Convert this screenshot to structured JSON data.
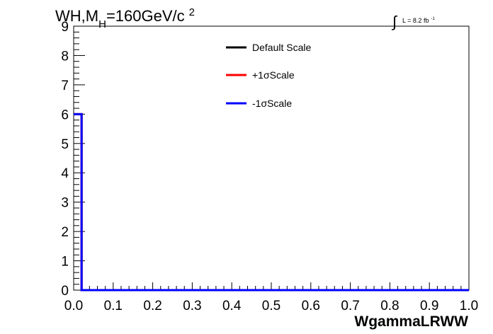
{
  "title": {
    "main": "WH,M",
    "sub": "H",
    "rest": "=160GeV/c",
    "sup": "2"
  },
  "lumi": {
    "integral": "∫",
    "text": "L = 8.2 fb",
    "sup": "-1"
  },
  "chart_data": {
    "type": "line",
    "xlabel": "WgammaLRWW",
    "ylabel": "",
    "xlim": [
      0.0,
      1.0
    ],
    "ylim": [
      0,
      9
    ],
    "x_ticks": [
      "0.0",
      "0.1",
      "0.2",
      "0.3",
      "0.4",
      "0.5",
      "0.6",
      "0.7",
      "0.8",
      "0.9",
      "1.0"
    ],
    "y_ticks": [
      "0",
      "1",
      "2",
      "3",
      "4",
      "5",
      "6",
      "7",
      "8",
      "9"
    ],
    "grid": false,
    "legend_position": "top-center",
    "bin_edges": [
      0.0,
      0.02,
      1.0
    ],
    "series": [
      {
        "name": "Default Scale",
        "color": "#000000",
        "values": [
          6,
          0
        ]
      },
      {
        "name": "+1σScale",
        "color": "#ff0000",
        "values": [
          6,
          0
        ]
      },
      {
        "name": "-1σScale",
        "color": "#0000ff",
        "values": [
          6,
          0
        ]
      }
    ]
  }
}
